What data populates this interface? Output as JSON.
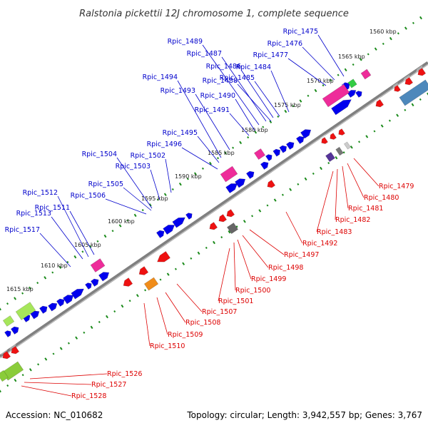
{
  "title": "Ralstonia pickettii 12J chromosome 1, complete sequence",
  "accession": "Accession: NC_010682",
  "topology": "Topology: circular; Length: 3,942,557 bp; Genes: 3,767",
  "colors": {
    "forward_label": "#0000cc",
    "reverse_label": "#dd0000",
    "forward_gene": "#0000ee",
    "reverse_gene": "#ee1111",
    "axis": "#808080",
    "tick": "#1a8a1a"
  },
  "scale": [
    "1560 kbp",
    "1565 kbp",
    "1570 kbp",
    "1575 kbp",
    "1580 kbp",
    "1585 kbp",
    "1590 kbp",
    "1595 kbp",
    "1600 kbp",
    "1605 kbp",
    "1610 kbp",
    "1615 kbp"
  ],
  "forward_labels": [
    "Rpic_1475",
    "Rpic_1476",
    "Rpic_1477",
    "Rpic_1484",
    "Rpic_1485",
    "Rpic_1486",
    "Rpic_1487",
    "Rpic_1488",
    "Rpic_1489",
    "Rpic_1490",
    "Rpic_1491",
    "Rpic_1493",
    "Rpic_1494",
    "Rpic_1495",
    "Rpic_1496",
    "Rpic_1502",
    "Rpic_1503",
    "Rpic_1504",
    "Rpic_1505",
    "Rpic_1506",
    "Rpic_1511",
    "Rpic_1512",
    "Rpic_1513",
    "Rpic_1517"
  ],
  "reverse_labels": [
    "Rpic_1479",
    "Rpic_1480",
    "Rpic_1481",
    "Rpic_1482",
    "Rpic_1483",
    "Rpic_1492",
    "Rpic_1497",
    "Rpic_1498",
    "Rpic_1499",
    "Rpic_1500",
    "Rpic_1501",
    "Rpic_1507",
    "Rpic_1508",
    "Rpic_1509",
    "Rpic_1510",
    "Rpic_1526",
    "Rpic_1527",
    "Rpic_1528"
  ]
}
